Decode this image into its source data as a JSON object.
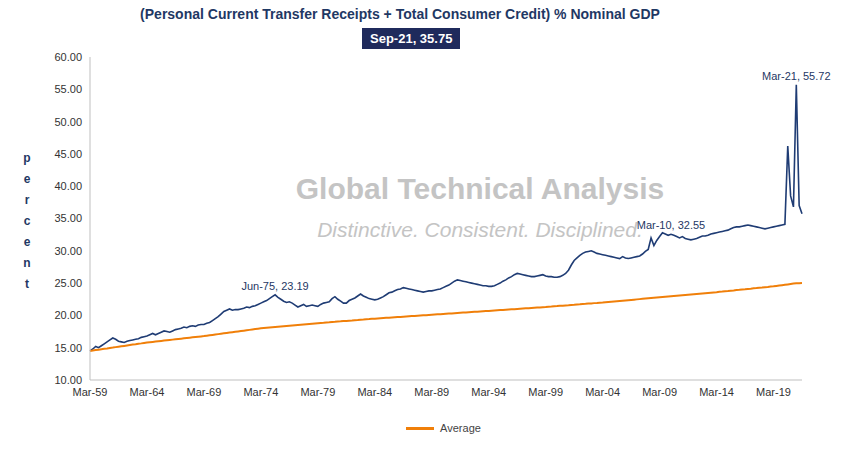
{
  "chart_data": {
    "type": "line",
    "title": "(Personal Current Transfer Receipts + Total Consumer Credit) % Nominal GDP",
    "subtitle": "Sep-21, 35.75",
    "y_label": "percent",
    "watermark": [
      "Global Technical Analysis",
      "Distinctive. Consistent. Disciplined."
    ],
    "categories": [
      "Mar-59",
      null,
      null,
      null,
      null,
      null,
      null,
      null,
      null,
      null,
      null,
      null,
      null,
      null,
      null,
      null,
      null,
      null,
      null,
      null,
      "Mar-64",
      null,
      null,
      null,
      null,
      null,
      null,
      null,
      null,
      null,
      null,
      null,
      null,
      null,
      null,
      null,
      null,
      null,
      null,
      null,
      "Mar-69",
      null,
      null,
      null,
      null,
      null,
      null,
      null,
      null,
      null,
      null,
      null,
      null,
      null,
      null,
      null,
      null,
      null,
      null,
      null,
      "Mar-74",
      null,
      null,
      null,
      null,
      null,
      null,
      null,
      null,
      null,
      null,
      null,
      null,
      null,
      null,
      null,
      null,
      null,
      null,
      null,
      "Mar-79",
      null,
      null,
      null,
      null,
      null,
      null,
      null,
      null,
      null,
      null,
      null,
      null,
      null,
      null,
      null,
      null,
      null,
      null,
      null,
      "Mar-84",
      null,
      null,
      null,
      null,
      null,
      null,
      null,
      null,
      null,
      null,
      null,
      null,
      null,
      null,
      null,
      null,
      null,
      null,
      null,
      "Mar-89",
      null,
      null,
      null,
      null,
      null,
      null,
      null,
      null,
      null,
      null,
      null,
      null,
      null,
      null,
      null,
      null,
      null,
      null,
      null,
      "Mar-94",
      null,
      null,
      null,
      null,
      null,
      null,
      null,
      null,
      null,
      null,
      null,
      null,
      null,
      null,
      null,
      null,
      null,
      null,
      null,
      "Mar-99",
      null,
      null,
      null,
      null,
      null,
      null,
      null,
      null,
      null,
      null,
      null,
      null,
      null,
      null,
      null,
      null,
      null,
      null,
      null,
      "Mar-04",
      null,
      null,
      null,
      null,
      null,
      null,
      null,
      null,
      null,
      null,
      null,
      null,
      null,
      null,
      null,
      null,
      null,
      null,
      null,
      "Mar-09",
      null,
      null,
      null,
      null,
      null,
      null,
      null,
      null,
      null,
      null,
      null,
      null,
      null,
      null,
      null,
      null,
      null,
      null,
      null,
      "Mar-14",
      null,
      null,
      null,
      null,
      null,
      null,
      null,
      null,
      null,
      null,
      null,
      null,
      null,
      null,
      null,
      null,
      null,
      null,
      null,
      "Mar-19",
      null,
      null,
      null,
      null,
      null,
      null,
      null,
      null,
      null,
      null
    ],
    "series": [
      {
        "color": "#1f3c74",
        "values": [
          14.5,
          14.8,
          15.2,
          15.0,
          15.3,
          15.6,
          15.9,
          16.2,
          16.5,
          16.3,
          16.0,
          15.9,
          15.8,
          16.0,
          16.1,
          16.2,
          16.3,
          16.4,
          16.6,
          16.7,
          16.8,
          17.0,
          17.2,
          17.0,
          17.2,
          17.4,
          17.6,
          17.5,
          17.4,
          17.6,
          17.8,
          17.9,
          18.0,
          18.2,
          18.1,
          18.3,
          18.4,
          18.3,
          18.5,
          18.6,
          18.6,
          18.8,
          18.9,
          19.2,
          19.5,
          19.8,
          20.2,
          20.6,
          20.8,
          21.0,
          20.8,
          20.9,
          20.9,
          21.0,
          21.1,
          21.3,
          21.2,
          21.4,
          21.5,
          21.7,
          21.9,
          22.1,
          22.3,
          22.6,
          22.9,
          23.19,
          22.8,
          22.5,
          22.2,
          22.0,
          22.1,
          21.9,
          21.6,
          21.3,
          21.5,
          21.7,
          21.4,
          21.5,
          21.6,
          21.5,
          21.4,
          21.7,
          21.9,
          22.0,
          22.1,
          22.6,
          22.9,
          22.5,
          22.2,
          21.9,
          21.9,
          22.3,
          22.5,
          22.7,
          23.0,
          23.3,
          23.0,
          22.8,
          22.6,
          22.5,
          22.4,
          22.5,
          22.7,
          22.9,
          23.2,
          23.5,
          23.6,
          23.8,
          24.0,
          24.1,
          24.3,
          24.2,
          24.1,
          24.0,
          23.9,
          23.8,
          23.7,
          23.6,
          23.7,
          23.8,
          23.8,
          23.9,
          24.0,
          24.1,
          24.3,
          24.5,
          24.7,
          25.0,
          25.3,
          25.5,
          25.4,
          25.3,
          25.2,
          25.1,
          25.0,
          24.9,
          24.8,
          24.7,
          24.6,
          24.6,
          24.5,
          24.5,
          24.6,
          24.8,
          25.0,
          25.3,
          25.5,
          25.8,
          26.0,
          26.3,
          26.5,
          26.4,
          26.3,
          26.2,
          26.1,
          26.0,
          26.0,
          26.1,
          26.2,
          26.3,
          26.1,
          26.0,
          26.0,
          25.9,
          25.9,
          26.0,
          26.2,
          26.5,
          27.0,
          27.8,
          28.5,
          28.9,
          29.3,
          29.6,
          29.8,
          29.9,
          30.0,
          29.8,
          29.6,
          29.5,
          29.4,
          29.3,
          29.2,
          29.1,
          29.0,
          28.9,
          28.8,
          29.1,
          28.9,
          28.8,
          28.9,
          29.0,
          29.1,
          29.2,
          29.5,
          29.9,
          30.2,
          32.0,
          30.8,
          31.6,
          32.2,
          32.8,
          32.6,
          32.4,
          32.55,
          32.4,
          32.2,
          32.0,
          32.2,
          31.9,
          31.8,
          31.7,
          31.8,
          31.9,
          32.1,
          32.3,
          32.3,
          32.4,
          32.6,
          32.7,
          32.8,
          32.9,
          33.0,
          33.1,
          33.2,
          33.4,
          33.6,
          33.7,
          33.7,
          33.8,
          33.9,
          34.0,
          33.9,
          33.8,
          33.7,
          33.6,
          33.5,
          33.4,
          33.5,
          33.6,
          33.7,
          33.8,
          33.9,
          34.0,
          34.1,
          46.2,
          38.5,
          36.8,
          55.72,
          37.0,
          35.75
        ]
      },
      {
        "name": "Average",
        "color": "#f07f09",
        "values": [
          14.5,
          14.57,
          14.63,
          14.7,
          14.76,
          14.83,
          14.89,
          14.96,
          15.02,
          15.09,
          15.15,
          15.22,
          15.28,
          15.35,
          15.41,
          15.48,
          15.54,
          15.61,
          15.67,
          15.74,
          15.8,
          15.85,
          15.9,
          15.95,
          16.0,
          16.05,
          16.1,
          16.15,
          16.2,
          16.25,
          16.3,
          16.35,
          16.4,
          16.45,
          16.5,
          16.55,
          16.6,
          16.65,
          16.7,
          16.75,
          16.8,
          16.86,
          16.92,
          16.98,
          17.04,
          17.1,
          17.16,
          17.22,
          17.28,
          17.34,
          17.4,
          17.46,
          17.52,
          17.58,
          17.64,
          17.7,
          17.76,
          17.82,
          17.88,
          17.94,
          18.0,
          18.04,
          18.08,
          18.12,
          18.16,
          18.2,
          18.24,
          18.28,
          18.32,
          18.36,
          18.4,
          18.44,
          18.48,
          18.52,
          18.56,
          18.6,
          18.64,
          18.68,
          18.72,
          18.76,
          18.8,
          18.84,
          18.87,
          18.91,
          18.94,
          18.98,
          19.01,
          19.05,
          19.08,
          19.12,
          19.15,
          19.19,
          19.22,
          19.26,
          19.29,
          19.33,
          19.36,
          19.4,
          19.43,
          19.47,
          19.5,
          19.53,
          19.56,
          19.59,
          19.62,
          19.65,
          19.68,
          19.71,
          19.74,
          19.77,
          19.8,
          19.83,
          19.86,
          19.89,
          19.92,
          19.95,
          19.98,
          20.01,
          20.04,
          20.07,
          20.1,
          20.13,
          20.16,
          20.19,
          20.22,
          20.25,
          20.28,
          20.31,
          20.34,
          20.37,
          20.4,
          20.43,
          20.46,
          20.49,
          20.52,
          20.55,
          20.58,
          20.61,
          20.64,
          20.67,
          20.7,
          20.73,
          20.76,
          20.79,
          20.82,
          20.85,
          20.88,
          20.91,
          20.94,
          20.97,
          21.0,
          21.03,
          21.06,
          21.09,
          21.12,
          21.15,
          21.18,
          21.21,
          21.24,
          21.27,
          21.3,
          21.34,
          21.37,
          21.41,
          21.44,
          21.48,
          21.51,
          21.55,
          21.58,
          21.62,
          21.65,
          21.69,
          21.72,
          21.76,
          21.79,
          21.83,
          21.86,
          21.9,
          21.93,
          21.97,
          22.0,
          22.04,
          22.08,
          22.12,
          22.16,
          22.2,
          22.24,
          22.28,
          22.32,
          22.36,
          22.4,
          22.44,
          22.48,
          22.52,
          22.56,
          22.6,
          22.64,
          22.68,
          22.72,
          22.76,
          22.8,
          22.84,
          22.88,
          22.92,
          22.96,
          23.0,
          23.04,
          23.08,
          23.12,
          23.16,
          23.2,
          23.24,
          23.28,
          23.32,
          23.36,
          23.4,
          23.44,
          23.48,
          23.52,
          23.56,
          23.6,
          23.65,
          23.69,
          23.74,
          23.78,
          23.83,
          23.87,
          23.92,
          23.96,
          24.01,
          24.05,
          24.1,
          24.14,
          24.19,
          24.23,
          24.28,
          24.32,
          24.37,
          24.41,
          24.46,
          24.5,
          24.56,
          24.62,
          24.68,
          24.74,
          24.8,
          24.86,
          24.92,
          24.96,
          24.98,
          25.0
        ]
      }
    ],
    "annotations": [
      {
        "text": "Jun-75, 23.19",
        "value": 23.19
      },
      {
        "text": "Mar-10, 32.55",
        "value": 32.55
      },
      {
        "text": "Mar-21, 55.72",
        "value": 55.72
      }
    ],
    "ylim": [
      10,
      60
    ],
    "yticks": [
      {
        "value": 10,
        "label": "10.00"
      },
      {
        "value": 15,
        "label": "15.00"
      },
      {
        "value": 20,
        "label": "20.00"
      },
      {
        "value": 25,
        "label": "25.00"
      },
      {
        "value": 30,
        "label": "30.00"
      },
      {
        "value": 35,
        "label": "35.00"
      },
      {
        "value": 40,
        "label": "40.00"
      },
      {
        "value": 45,
        "label": "45.00"
      },
      {
        "value": 50,
        "label": "50.00"
      },
      {
        "value": 55,
        "label": "55.00"
      },
      {
        "value": 60,
        "label": "60.00"
      }
    ],
    "grid": false,
    "legend": "bottom"
  }
}
